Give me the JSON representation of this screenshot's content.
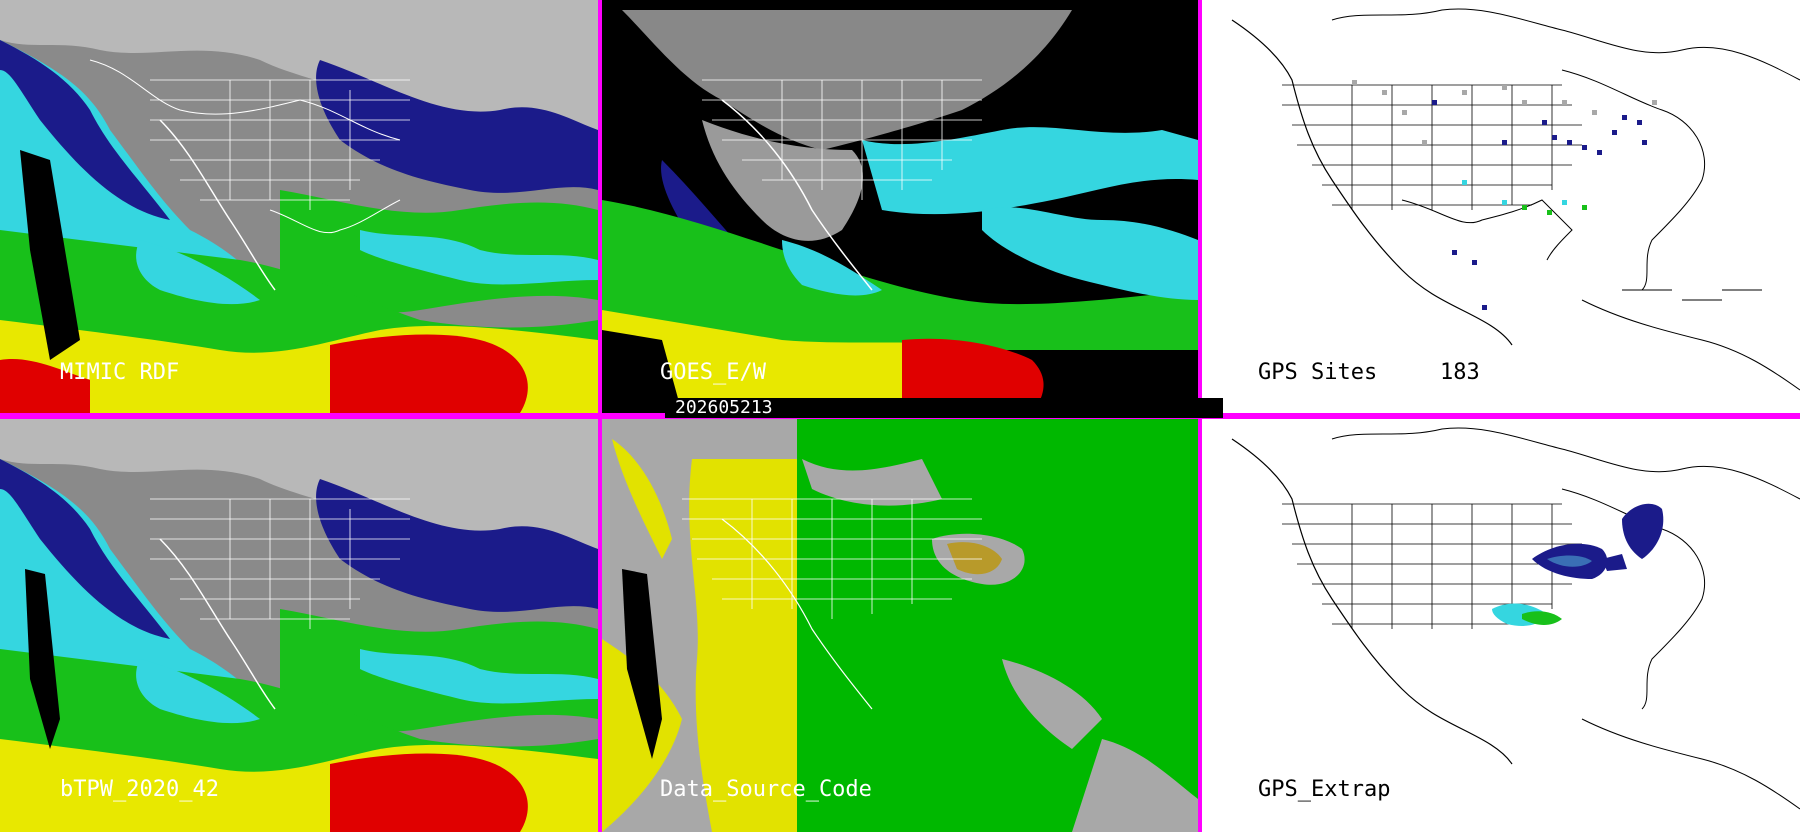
{
  "panels": {
    "mimic": {
      "label": "MIMIC RDF"
    },
    "goes": {
      "label": "GOES_E/W"
    },
    "gps_sites": {
      "label": "GPS Sites",
      "count": "183"
    },
    "btpw": {
      "label": "bTPW_2020_42"
    },
    "data_source": {
      "label": "Data_Source_Code"
    },
    "gps_extrap": {
      "label": "GPS_Extrap"
    }
  },
  "timestamp": "202605213",
  "colors": {
    "divider": "#ff00ff",
    "tpw_dry": "#1b1b8a",
    "tpw_mid": "#35d6e0",
    "tpw_moist": "#18c01a",
    "tpw_wet": "#e8e800",
    "tpw_very_wet": "#e00000",
    "source_gray": "#a8a8a8",
    "source_yellow": "#e2e200",
    "source_green": "#00b800"
  }
}
